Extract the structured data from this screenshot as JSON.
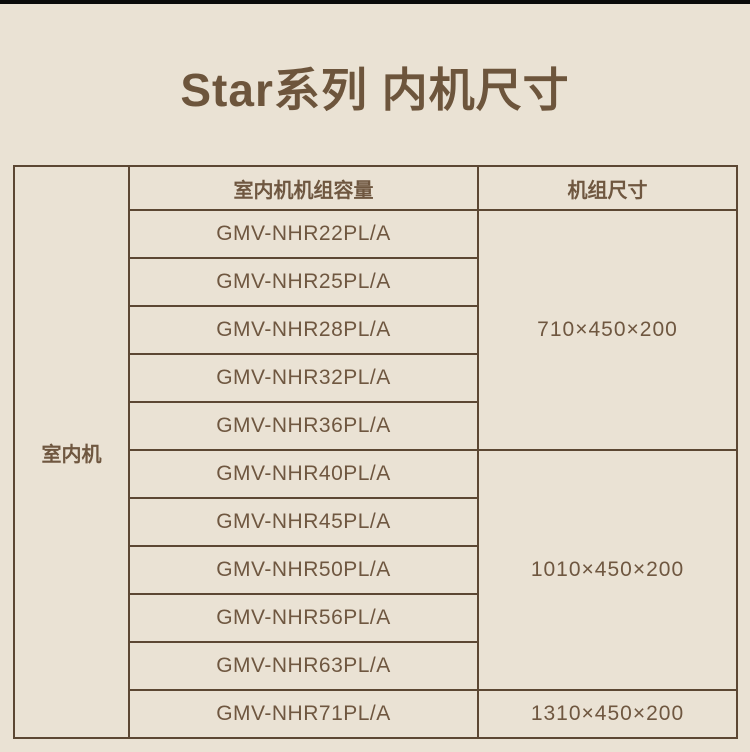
{
  "page": {
    "title": "Star系列 内机尺寸"
  },
  "table": {
    "side_label": "室内机",
    "headers": {
      "capacity": "室内机机组容量",
      "size": "机组尺寸"
    },
    "models": [
      "GMV-NHR22PL/A",
      "GMV-NHR25PL/A",
      "GMV-NHR28PL/A",
      "GMV-NHR32PL/A",
      "GMV-NHR36PL/A",
      "GMV-NHR40PL/A",
      "GMV-NHR45PL/A",
      "GMV-NHR50PL/A",
      "GMV-NHR56PL/A",
      "GMV-NHR63PL/A",
      "GMV-NHR71PL/A"
    ],
    "sizes": {
      "group1": "710×450×200",
      "group2": "1010×450×200",
      "group3": "1310×450×200"
    }
  },
  "colors": {
    "background": "#eae2d4",
    "border": "#5c4733",
    "text": "#6f5740",
    "title": "#6d553c",
    "top_bar": "#0a0a0a"
  }
}
